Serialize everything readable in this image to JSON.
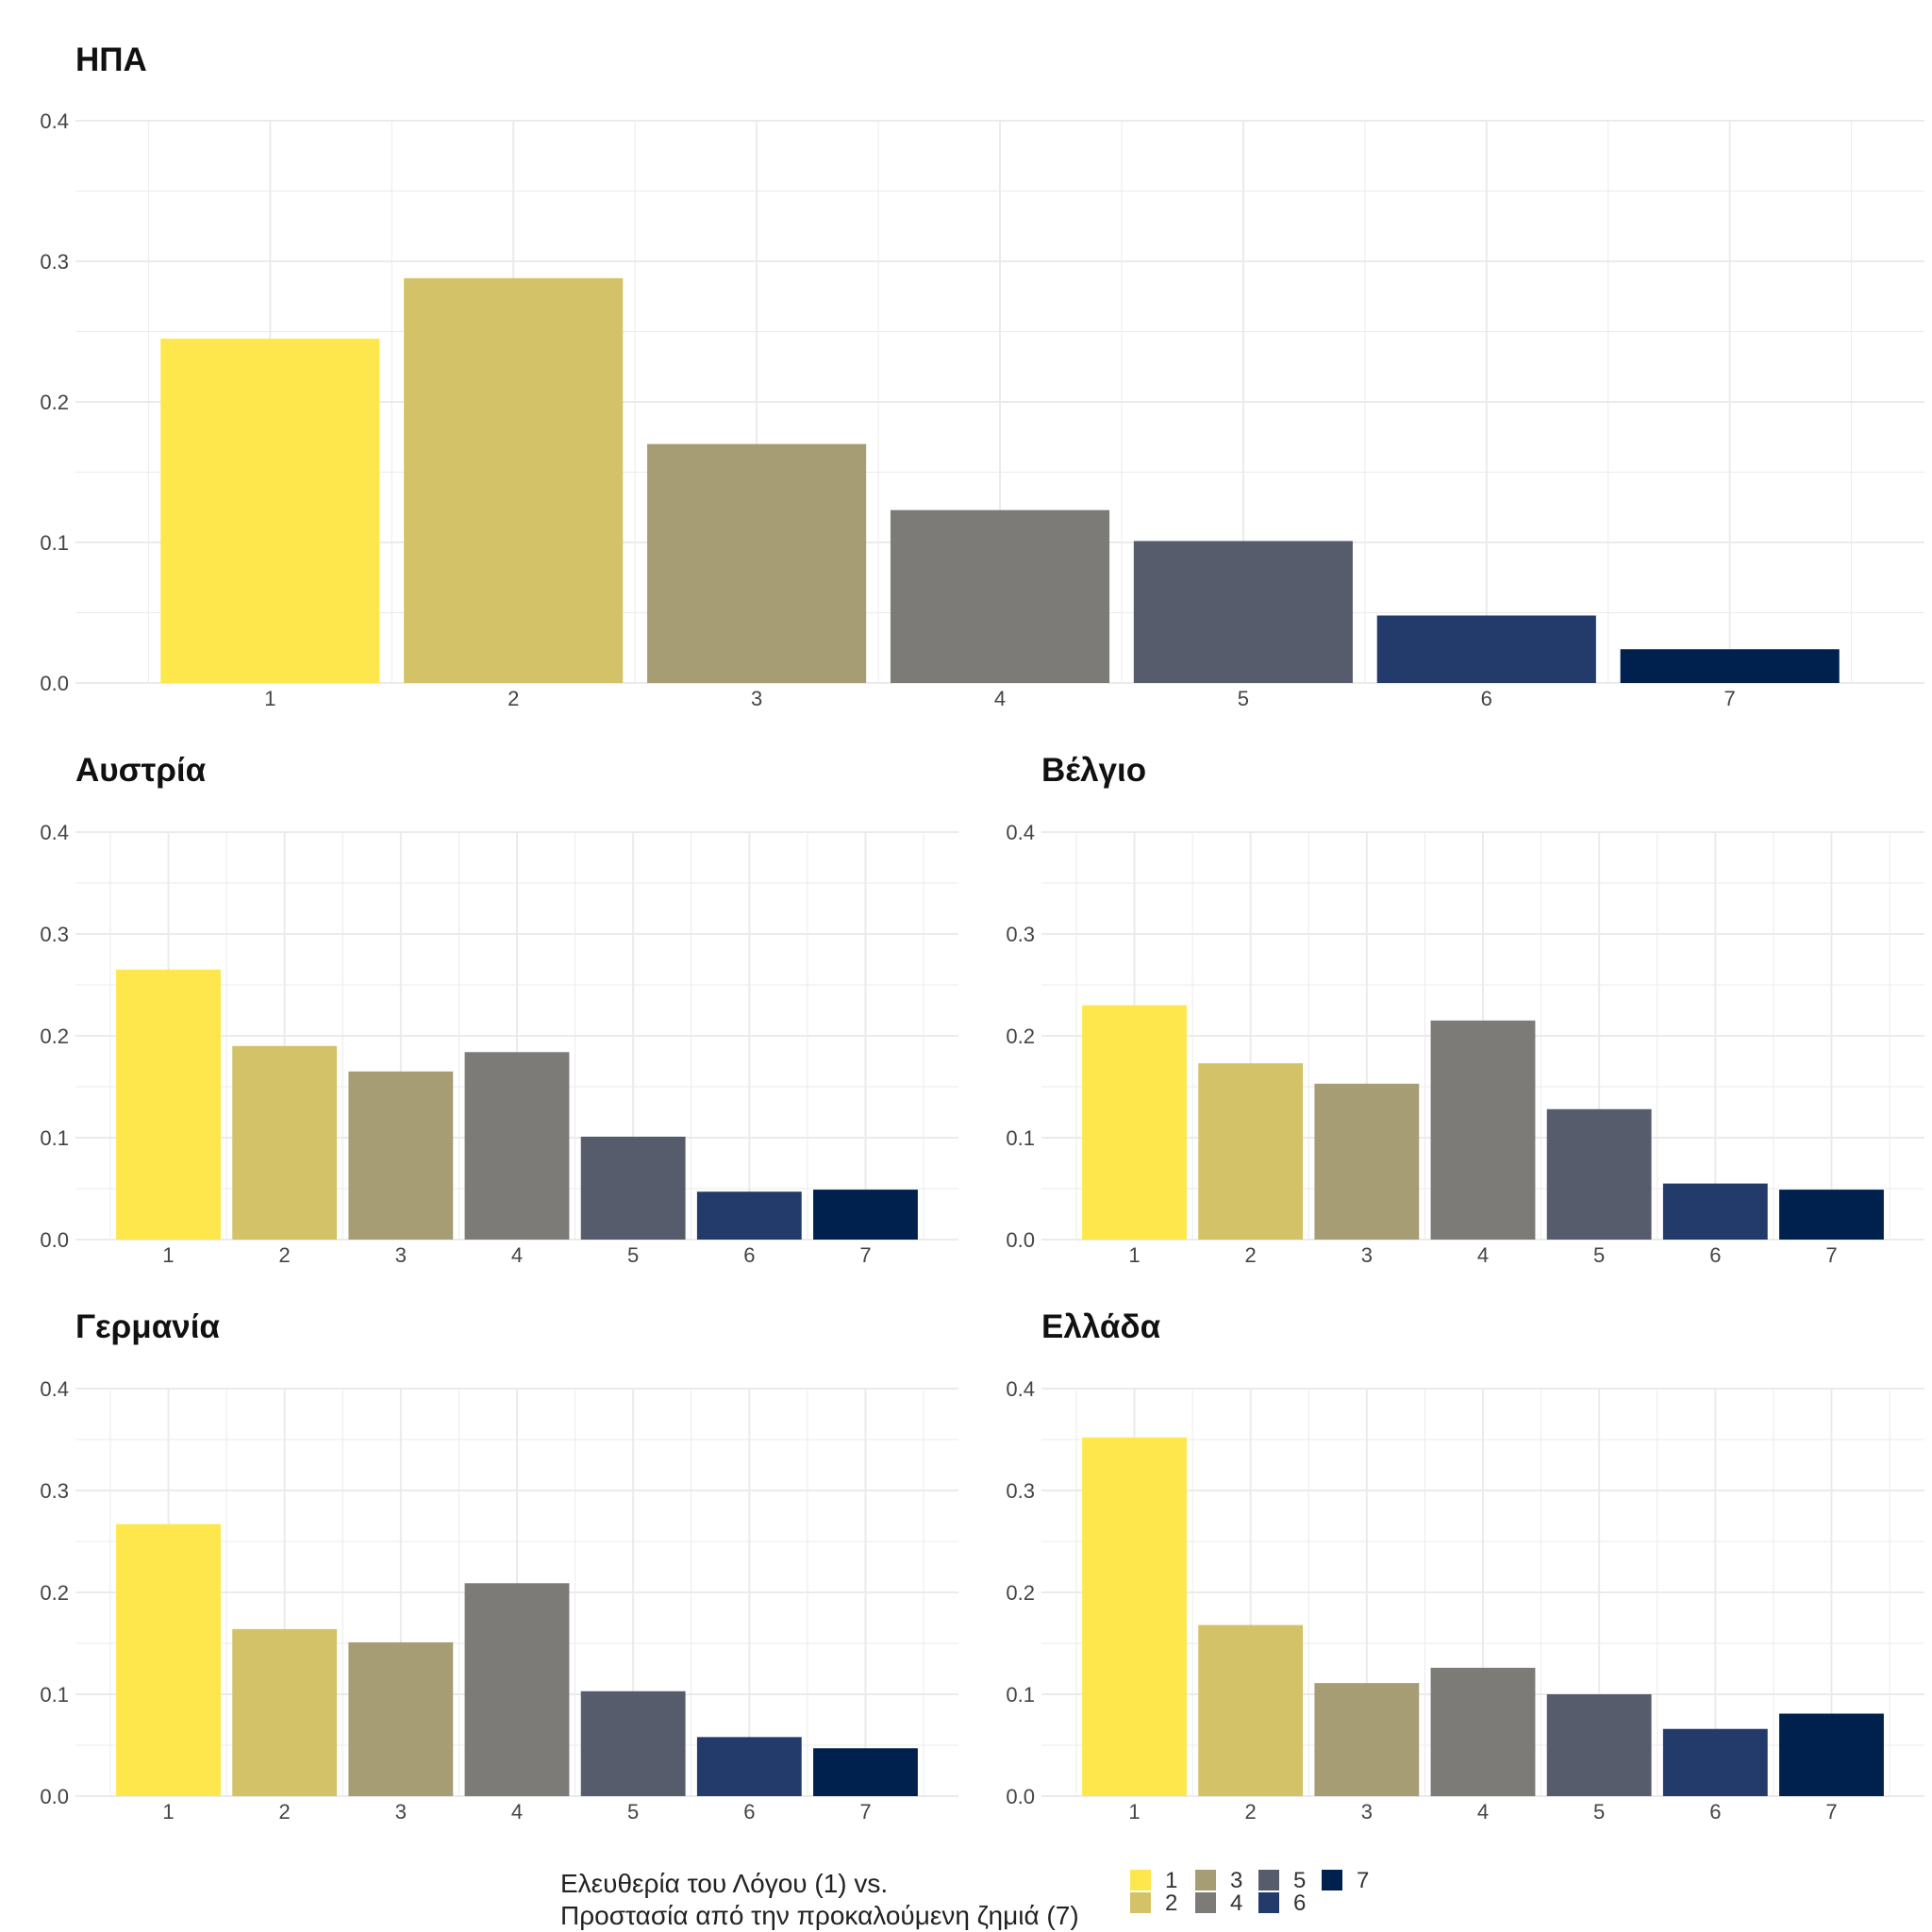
{
  "chart_data": [
    {
      "type": "bar",
      "title": "ΗΠΑ",
      "categories": [
        "1",
        "2",
        "3",
        "4",
        "5",
        "6",
        "7"
      ],
      "values": [
        0.245,
        0.288,
        0.17,
        0.123,
        0.101,
        0.048,
        0.024
      ],
      "yticks": [
        "0.0",
        "0.1",
        "0.2",
        "0.3",
        "0.4"
      ],
      "ylim": [
        0,
        0.4
      ],
      "xlabel": "",
      "ylabel": ""
    },
    {
      "type": "bar",
      "title": "Αυστρία",
      "categories": [
        "1",
        "2",
        "3",
        "4",
        "5",
        "6",
        "7"
      ],
      "values": [
        0.265,
        0.19,
        0.165,
        0.184,
        0.101,
        0.047,
        0.049
      ],
      "yticks": [
        "0.0",
        "0.1",
        "0.2",
        "0.3",
        "0.4"
      ],
      "ylim": [
        0,
        0.4
      ],
      "xlabel": "",
      "ylabel": ""
    },
    {
      "type": "bar",
      "title": "Βέλγιο",
      "categories": [
        "1",
        "2",
        "3",
        "4",
        "5",
        "6",
        "7"
      ],
      "values": [
        0.23,
        0.173,
        0.153,
        0.215,
        0.128,
        0.055,
        0.049
      ],
      "yticks": [
        "0.0",
        "0.1",
        "0.2",
        "0.3",
        "0.4"
      ],
      "ylim": [
        0,
        0.4
      ],
      "xlabel": "",
      "ylabel": ""
    },
    {
      "type": "bar",
      "title": "Γερμανία",
      "categories": [
        "1",
        "2",
        "3",
        "4",
        "5",
        "6",
        "7"
      ],
      "values": [
        0.267,
        0.164,
        0.151,
        0.209,
        0.103,
        0.058,
        0.047
      ],
      "yticks": [
        "0.0",
        "0.1",
        "0.2",
        "0.3",
        "0.4"
      ],
      "ylim": [
        0,
        0.4
      ],
      "xlabel": "",
      "ylabel": ""
    },
    {
      "type": "bar",
      "title": "Ελλάδα",
      "categories": [
        "1",
        "2",
        "3",
        "4",
        "5",
        "6",
        "7"
      ],
      "values": [
        0.352,
        0.168,
        0.111,
        0.126,
        0.1,
        0.066,
        0.081
      ],
      "yticks": [
        "0.0",
        "0.1",
        "0.2",
        "0.3",
        "0.4"
      ],
      "ylim": [
        0,
        0.4
      ],
      "xlabel": "",
      "ylabel": ""
    }
  ],
  "colors": [
    "#FDE74C",
    "#D3C267",
    "#A69D75",
    "#7C7B78",
    "#575C6D",
    "#223B6A",
    "#00204D"
  ],
  "grid_color": "#EBEBEB",
  "legend": {
    "title_line1": "Ελευθερία του Λόγου (1) vs.",
    "title_line2": "Προστασία από την προκαλούμενη ζημιά (7)",
    "items": [
      "1",
      "2",
      "3",
      "4",
      "5",
      "6",
      "7"
    ]
  }
}
